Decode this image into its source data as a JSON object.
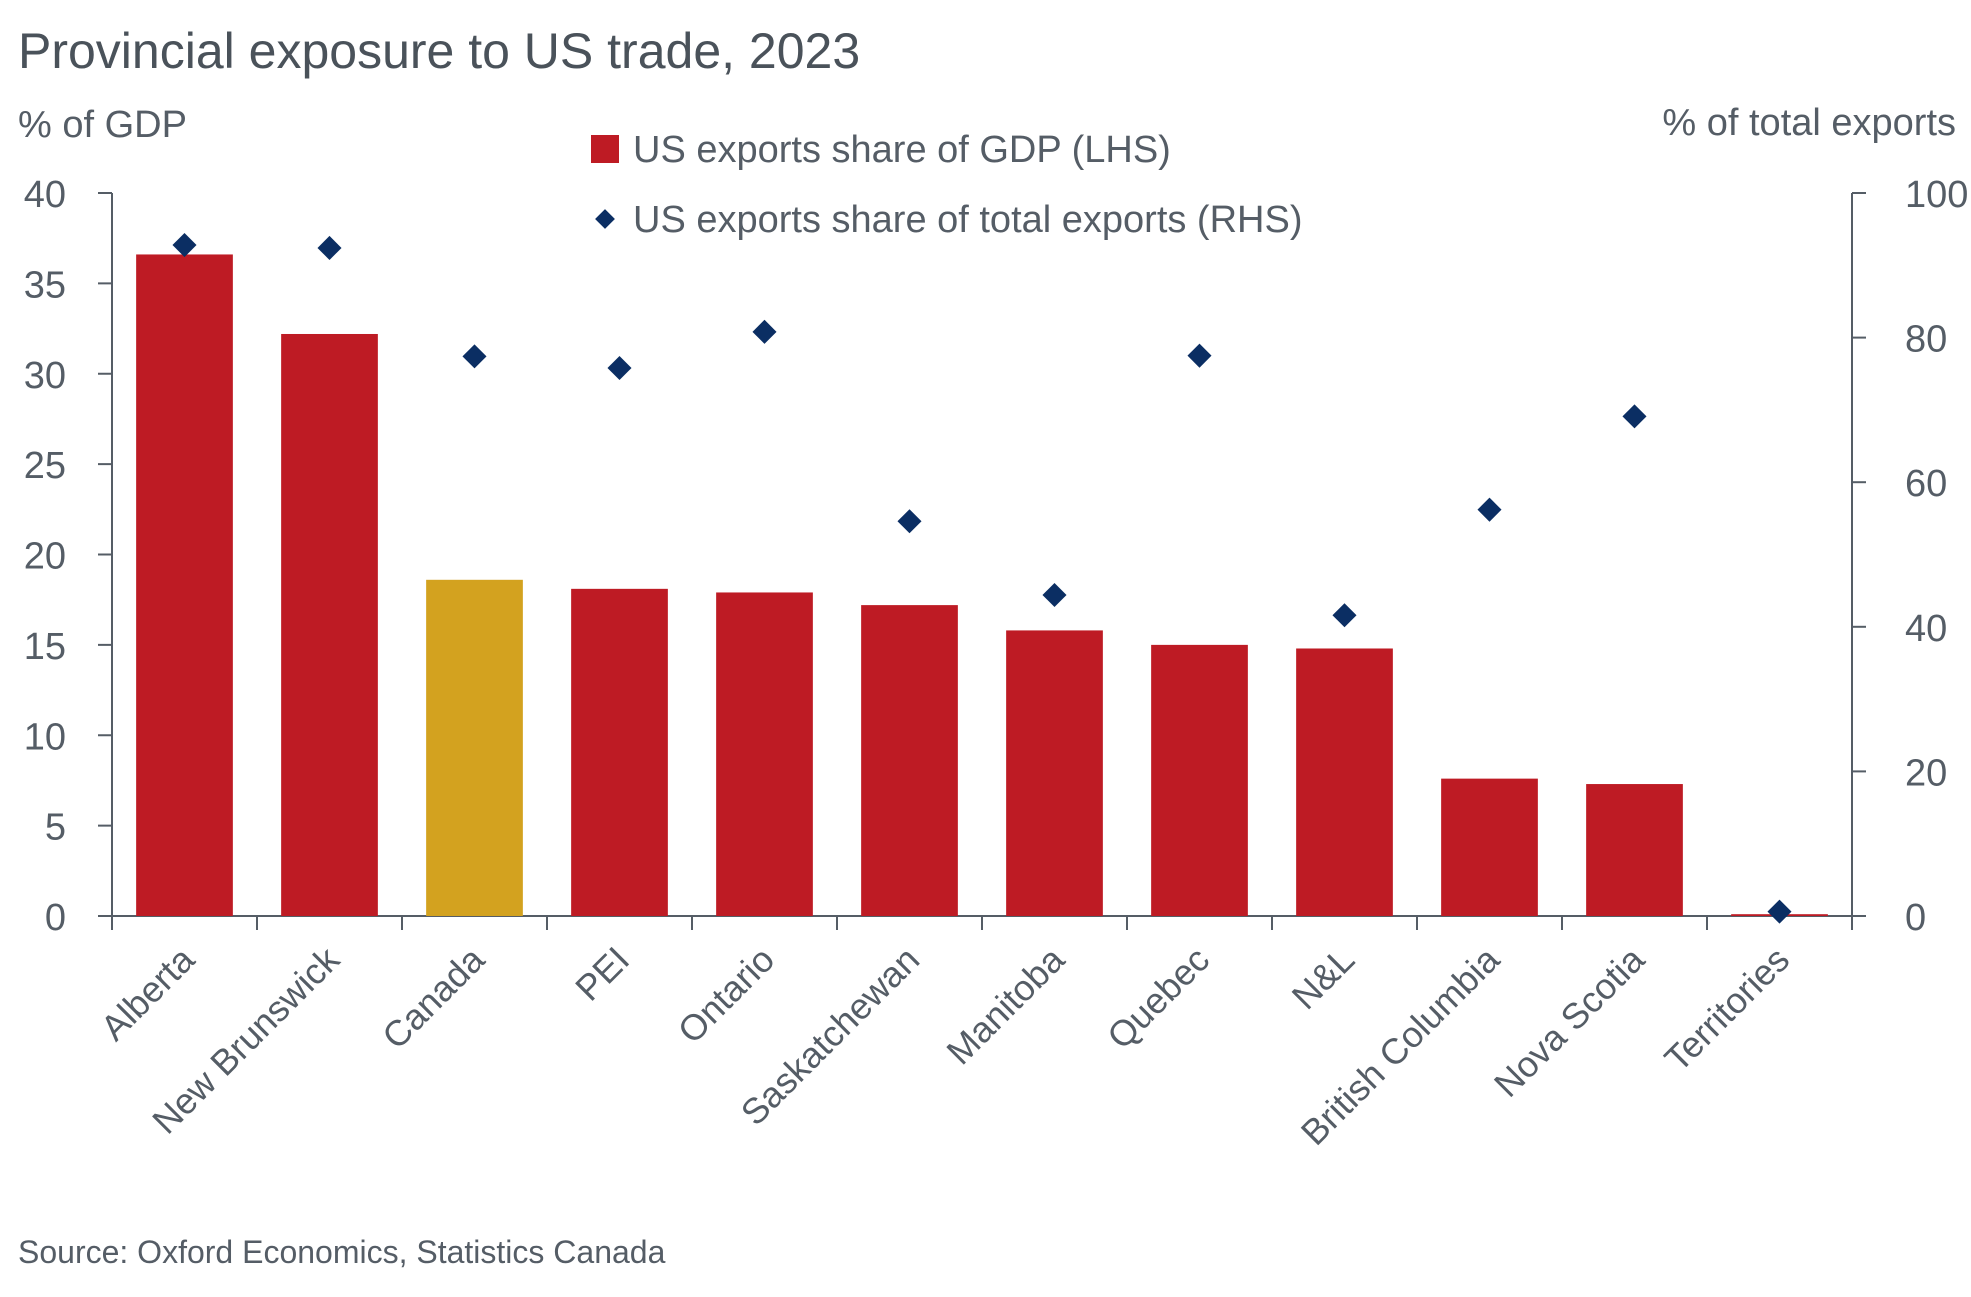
{
  "title": "Provincial exposure to US trade, 2023",
  "left_axis_label": "% of GDP",
  "right_axis_label": "% of total exports",
  "source": "Source: Oxford Economics, Statistics Canada",
  "colors": {
    "bar": "#be1b24",
    "bar_highlight": "#d3a21f",
    "marker": "#0b2e63",
    "axis": "#555d66"
  },
  "chart_data": {
    "type": "bar",
    "categories": [
      "Alberta",
      "New Brunswick",
      "Canada",
      "PEI",
      "Ontario",
      "Saskatchewan",
      "Manitoba",
      "Quebec",
      "N&L",
      "British Columbia",
      "Nova Scotia",
      "Territories"
    ],
    "highlight_category": "Canada",
    "series": [
      {
        "name": "US exports share of GDP (LHS)",
        "type": "bar",
        "axis": "left",
        "values": [
          36.6,
          32.2,
          18.6,
          18.1,
          17.9,
          17.2,
          15.8,
          15.0,
          14.8,
          7.6,
          7.3,
          0.1
        ]
      },
      {
        "name": "US exports share of total exports (RHS)",
        "type": "scatter",
        "marker": "diamond",
        "axis": "right",
        "values": [
          92.8,
          92.4,
          77.4,
          75.8,
          80.8,
          54.6,
          44.4,
          77.5,
          41.6,
          56.2,
          69.1,
          0.6
        ]
      }
    ],
    "left_axis": {
      "ylim": [
        0,
        40
      ],
      "ticks": [
        "0",
        "5",
        "10",
        "15",
        "20",
        "25",
        "30",
        "35",
        "40"
      ]
    },
    "right_axis": {
      "ylim": [
        0,
        100
      ],
      "ticks": [
        "0",
        "20",
        "40",
        "60",
        "80",
        "100"
      ]
    },
    "legend_position": "top-center",
    "grid": false
  }
}
